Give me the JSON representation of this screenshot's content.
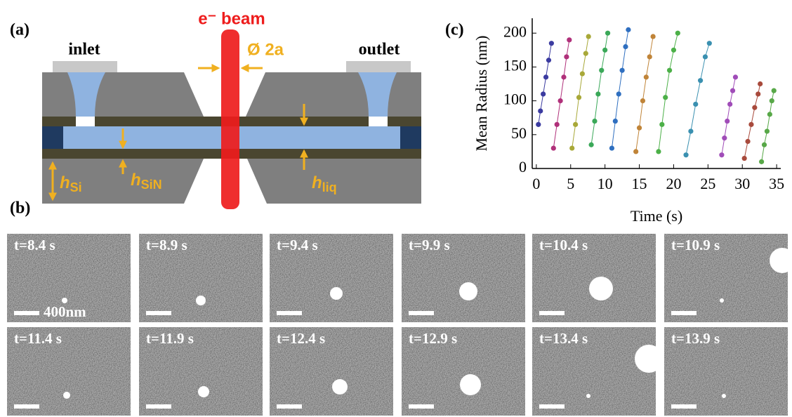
{
  "panel_labels": [
    "(a)",
    "(b)",
    "(c)"
  ],
  "diagram": {
    "inlet": "inlet",
    "outlet": "outlet",
    "beam": "e⁻ beam",
    "diameter": "Ø 2a",
    "h_si": {
      "symbol": "h",
      "subscript": "Si"
    },
    "h_sin": {
      "symbol": "h",
      "subscript": "SiN"
    },
    "h_liq": {
      "symbol": "h",
      "subscript": "liq"
    }
  },
  "frames": {
    "labels": [
      "t=8.4 s",
      "t=8.9 s",
      "t=9.4 s",
      "t=9.9 s",
      "t=10.4 s",
      "t=10.9 s",
      "t=11.4 s",
      "t=11.9 s",
      "t=12.4 s",
      "t=12.9 s",
      "t=13.4 s",
      "t=13.9 s"
    ],
    "scale_bar": "400nm"
  },
  "chart_data": {
    "type": "scatter",
    "x_label": "Time (s)",
    "y_label": "Mean Radius (nm)",
    "xlim": [
      -0.6,
      35.6
    ],
    "ylim": [
      0,
      222
    ],
    "xticks": [
      0,
      5,
      10,
      15,
      20,
      25,
      30,
      35
    ],
    "yticks": [
      0,
      50,
      100,
      150,
      200
    ],
    "series": [
      {
        "color": "#3b3ba0",
        "x": [
          0.3,
          0.6,
          1.0,
          1.4,
          1.8,
          2.2
        ],
        "values": [
          65,
          85,
          110,
          135,
          160,
          185
        ]
      },
      {
        "color": "#b0307a",
        "x": [
          2.5,
          3,
          3.5,
          4,
          4.4,
          4.8
        ],
        "values": [
          30,
          65,
          100,
          135,
          165,
          190
        ]
      },
      {
        "color": "#a8a838",
        "x": [
          5.2,
          5.7,
          6.2,
          6.7,
          7.2,
          7.6
        ],
        "values": [
          30,
          65,
          105,
          140,
          170,
          195
        ]
      },
      {
        "color": "#3aa858",
        "x": [
          8.0,
          8.5,
          9.0,
          9.5,
          10,
          10.4
        ],
        "values": [
          35,
          70,
          110,
          145,
          175,
          200
        ]
      },
      {
        "color": "#2f6fc0",
        "x": [
          11,
          11.5,
          12,
          12.5,
          13,
          13.4
        ],
        "values": [
          30,
          70,
          110,
          145,
          180,
          205
        ]
      },
      {
        "color": "#c08438",
        "x": [
          14.5,
          15,
          15.5,
          16,
          16.5,
          17
        ],
        "values": [
          25,
          60,
          100,
          135,
          165,
          195
        ]
      },
      {
        "color": "#4cb048",
        "x": [
          17.8,
          18.3,
          18.8,
          19.4,
          20,
          20.6
        ],
        "values": [
          25,
          65,
          105,
          145,
          175,
          200
        ]
      },
      {
        "color": "#3a90b0",
        "x": [
          21.8,
          22.5,
          23.2,
          23.9,
          24.6,
          25.2
        ],
        "values": [
          20,
          55,
          95,
          130,
          165,
          185
        ]
      },
      {
        "color": "#a04cb8",
        "x": [
          27,
          27.4,
          27.8,
          28.2,
          28.6,
          29
        ],
        "values": [
          20,
          45,
          70,
          95,
          115,
          135
        ]
      },
      {
        "color": "#a84a3c",
        "x": [
          30.3,
          30.8,
          31.3,
          31.8,
          32.3,
          32.6
        ],
        "values": [
          15,
          40,
          65,
          90,
          110,
          125
        ]
      },
      {
        "color": "#58a848",
        "x": [
          32.8,
          33.2,
          33.6,
          34,
          34.3,
          34.6
        ],
        "values": [
          10,
          35,
          55,
          80,
          100,
          115
        ]
      }
    ]
  }
}
